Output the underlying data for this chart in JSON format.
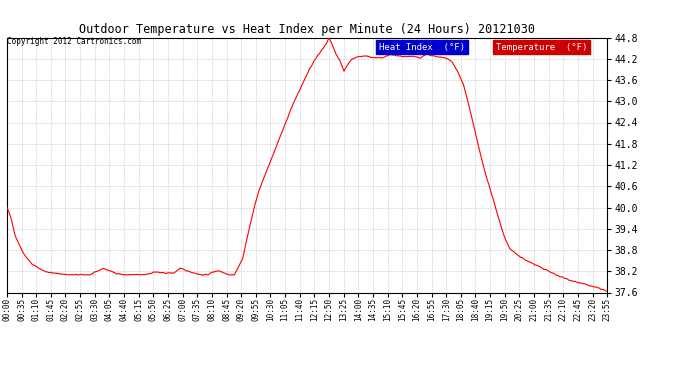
{
  "title": "Outdoor Temperature vs Heat Index per Minute (24 Hours) 20121030",
  "copyright": "Copyright 2012 Cartronics.com",
  "ylim": [
    37.6,
    44.8
  ],
  "yticks": [
    37.6,
    38.2,
    38.8,
    39.4,
    40.0,
    40.6,
    41.2,
    41.8,
    42.4,
    43.0,
    43.6,
    44.2,
    44.8
  ],
  "line_color": "#ff0000",
  "background_color": "#ffffff",
  "grid_color": "#bbbbbb",
  "legend_heat_index_bg": "#0000cc",
  "legend_temp_bg": "#cc0000",
  "legend_text_color": "#ffffff",
  "x_tick_labels": [
    "00:00",
    "00:35",
    "01:10",
    "01:45",
    "02:20",
    "02:55",
    "03:30",
    "04:05",
    "04:40",
    "05:15",
    "05:50",
    "06:25",
    "07:00",
    "07:35",
    "08:10",
    "08:45",
    "09:20",
    "09:55",
    "10:30",
    "11:05",
    "11:40",
    "12:15",
    "12:50",
    "13:25",
    "14:00",
    "14:35",
    "15:10",
    "15:45",
    "16:20",
    "16:55",
    "17:30",
    "18:05",
    "18:40",
    "19:15",
    "19:50",
    "20:25",
    "21:00",
    "21:35",
    "22:10",
    "22:45",
    "23:20",
    "23:55"
  ],
  "num_minutes": 1440,
  "control_points": [
    [
      0,
      40.0
    ],
    [
      10,
      39.7
    ],
    [
      20,
      39.2
    ],
    [
      40,
      38.7
    ],
    [
      60,
      38.4
    ],
    [
      90,
      38.2
    ],
    [
      110,
      38.15
    ],
    [
      150,
      38.1
    ],
    [
      200,
      38.1
    ],
    [
      230,
      38.28
    ],
    [
      245,
      38.22
    ],
    [
      260,
      38.15
    ],
    [
      280,
      38.1
    ],
    [
      310,
      38.1
    ],
    [
      330,
      38.1
    ],
    [
      355,
      38.18
    ],
    [
      375,
      38.15
    ],
    [
      400,
      38.15
    ],
    [
      415,
      38.28
    ],
    [
      430,
      38.22
    ],
    [
      450,
      38.15
    ],
    [
      465,
      38.1
    ],
    [
      480,
      38.1
    ],
    [
      495,
      38.18
    ],
    [
      508,
      38.22
    ],
    [
      515,
      38.18
    ],
    [
      525,
      38.14
    ],
    [
      535,
      38.1
    ],
    [
      545,
      38.1
    ],
    [
      555,
      38.32
    ],
    [
      565,
      38.55
    ],
    [
      575,
      39.1
    ],
    [
      585,
      39.6
    ],
    [
      595,
      40.1
    ],
    [
      605,
      40.5
    ],
    [
      625,
      41.1
    ],
    [
      645,
      41.7
    ],
    [
      665,
      42.3
    ],
    [
      685,
      42.9
    ],
    [
      705,
      43.4
    ],
    [
      725,
      43.9
    ],
    [
      745,
      44.3
    ],
    [
      755,
      44.45
    ],
    [
      765,
      44.6
    ],
    [
      772,
      44.78
    ],
    [
      778,
      44.65
    ],
    [
      788,
      44.35
    ],
    [
      798,
      44.15
    ],
    [
      808,
      43.85
    ],
    [
      818,
      44.05
    ],
    [
      828,
      44.2
    ],
    [
      840,
      44.25
    ],
    [
      860,
      44.28
    ],
    [
      880,
      44.22
    ],
    [
      900,
      44.22
    ],
    [
      920,
      44.32
    ],
    [
      940,
      44.28
    ],
    [
      960,
      44.25
    ],
    [
      975,
      44.28
    ],
    [
      990,
      44.22
    ],
    [
      1005,
      44.32
    ],
    [
      1020,
      44.28
    ],
    [
      1035,
      44.25
    ],
    [
      1050,
      44.22
    ],
    [
      1065,
      44.15
    ],
    [
      1080,
      43.85
    ],
    [
      1095,
      43.45
    ],
    [
      1105,
      43.0
    ],
    [
      1115,
      42.5
    ],
    [
      1125,
      42.0
    ],
    [
      1135,
      41.5
    ],
    [
      1145,
      41.05
    ],
    [
      1155,
      40.65
    ],
    [
      1165,
      40.25
    ],
    [
      1175,
      39.85
    ],
    [
      1185,
      39.45
    ],
    [
      1195,
      39.1
    ],
    [
      1205,
      38.85
    ],
    [
      1215,
      38.75
    ],
    [
      1230,
      38.6
    ],
    [
      1260,
      38.42
    ],
    [
      1290,
      38.25
    ],
    [
      1320,
      38.08
    ],
    [
      1350,
      37.95
    ],
    [
      1380,
      37.85
    ],
    [
      1410,
      37.75
    ],
    [
      1430,
      37.68
    ],
    [
      1439,
      37.62
    ]
  ]
}
